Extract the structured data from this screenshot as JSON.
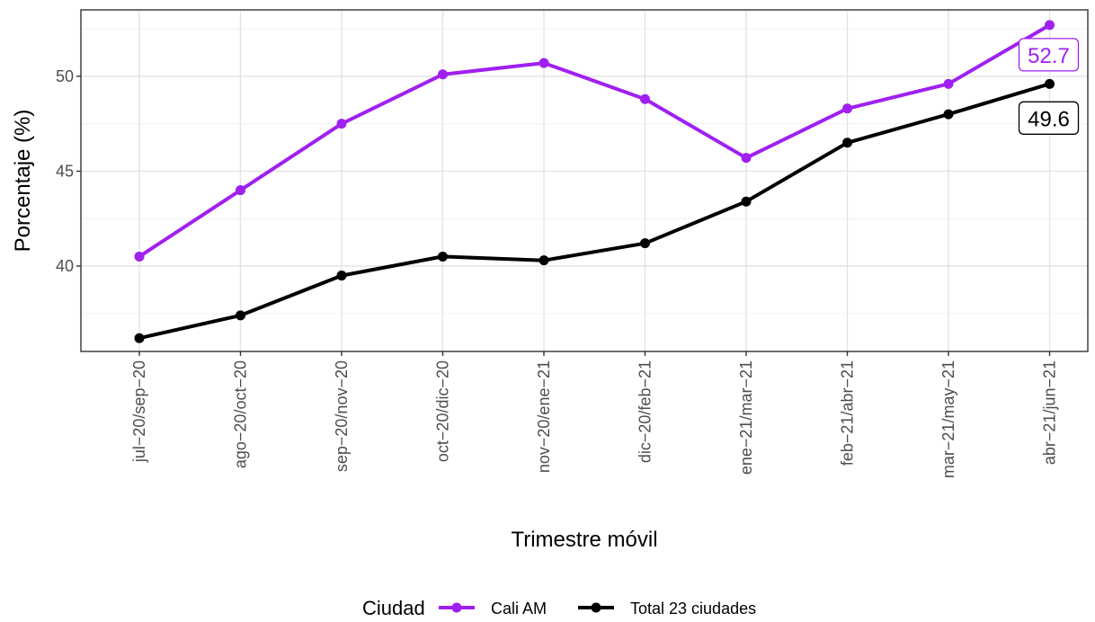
{
  "chart_data": {
    "type": "line",
    "title": "",
    "xlabel": "Trimestre móvil",
    "ylabel": "Porcentaje (%)",
    "categories": [
      "jul−20/sep−20",
      "ago−20/oct−20",
      "sep−20/nov−20",
      "oct−20/dic−20",
      "nov−20/ene−21",
      "dic−20/feb−21",
      "ene−21/mar−21",
      "feb−21/abr−21",
      "mar−21/may−21",
      "abr−21/jun−21"
    ],
    "ylim": [
      35.5,
      53.5
    ],
    "yticks": [
      40,
      45,
      50
    ],
    "grid": true,
    "legend_position": "bottom",
    "legend_title": "Ciudad",
    "series": [
      {
        "name": "Cali AM",
        "color": "#a020f0",
        "values": [
          40.5,
          44.0,
          47.5,
          50.1,
          50.7,
          48.8,
          45.7,
          48.3,
          49.6,
          52.7
        ],
        "end_label": "52.7"
      },
      {
        "name": "Total 23 ciudades",
        "color": "#000000",
        "values": [
          36.2,
          37.4,
          39.5,
          40.5,
          40.3,
          41.2,
          43.4,
          46.5,
          48.0,
          49.6
        ],
        "end_label": "49.6"
      }
    ]
  }
}
